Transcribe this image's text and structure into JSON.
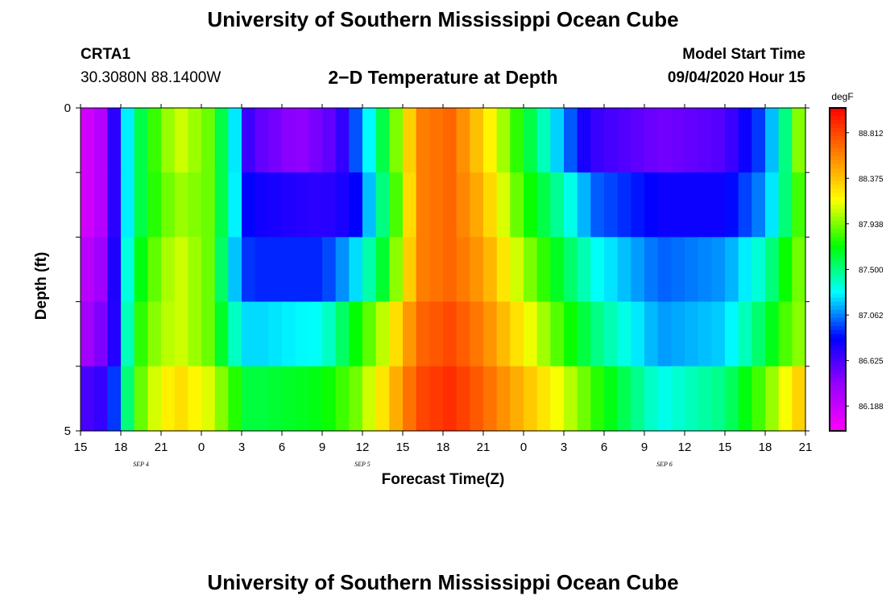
{
  "page": {
    "title": "University of Southern Mississippi Ocean Cube",
    "station_id": "CRTA1",
    "coordinates": "30.3080N 88.1400W",
    "start_label": "Model Start Time",
    "start_value": "09/04/2020 Hour 15"
  },
  "chart_data": {
    "type": "heatmap",
    "title": "2−D Temperature at Depth",
    "xlabel": "Forecast Time(Z)",
    "ylabel": "Depth (ft)",
    "x_tick_labels": [
      "15",
      "18",
      "21",
      "0",
      "3",
      "6",
      "9",
      "12",
      "15",
      "18",
      "21",
      "0",
      "3",
      "6",
      "9",
      "12",
      "15",
      "18",
      "21"
    ],
    "x_day_labels": [
      {
        "label": "SEP 4",
        "tick_index": 1.5
      },
      {
        "label": "SEP 5",
        "tick_index": 7
      },
      {
        "label": "SEP 6",
        "tick_index": 14.5
      }
    ],
    "y_tick_labels": [
      "0",
      "5"
    ],
    "ylim": [
      0,
      5
    ],
    "depth_levels": 5,
    "time_steps": 54,
    "colorbar": {
      "units": "degF",
      "min": 85.95,
      "max": 89.05,
      "ticks": [
        "88.812",
        "88.375",
        "87.938",
        "87.500",
        "87.062",
        "86.625",
        "86.188"
      ],
      "colors": [
        "#ff00ff",
        "#9900ff",
        "#0000ff",
        "#00ffff",
        "#00ff00",
        "#ffff00",
        "#ff8000",
        "#ff0000"
      ]
    },
    "series": [
      {
        "depth": 0.5,
        "keyframes": [
          [
            0,
            86.1
          ],
          [
            3,
            86.3
          ],
          [
            5,
            87.0
          ],
          [
            6,
            87.3
          ],
          [
            8,
            87.7
          ],
          [
            12,
            88.1
          ],
          [
            16,
            87.9
          ],
          [
            19,
            87.3
          ],
          [
            21,
            86.6
          ],
          [
            27,
            86.4
          ],
          [
            32,
            86.6
          ],
          [
            36,
            87.3
          ],
          [
            39,
            87.9
          ],
          [
            42,
            88.6
          ],
          [
            46,
            88.7
          ],
          [
            50,
            88.3
          ],
          [
            55,
            87.7
          ],
          [
            60,
            87.1
          ],
          [
            63,
            86.7
          ],
          [
            72,
            86.5
          ],
          [
            80,
            86.6
          ],
          [
            85,
            87.0
          ],
          [
            88,
            87.6
          ],
          [
            90,
            88.2
          ]
        ]
      },
      {
        "depth": 1.5,
        "keyframes": [
          [
            0,
            86.1
          ],
          [
            3,
            86.3
          ],
          [
            5,
            87.0
          ],
          [
            6,
            87.3
          ],
          [
            8,
            87.7
          ],
          [
            12,
            88.0
          ],
          [
            16,
            87.9
          ],
          [
            19,
            87.3
          ],
          [
            21,
            86.8
          ],
          [
            30,
            86.7
          ],
          [
            34,
            86.8
          ],
          [
            36,
            87.2
          ],
          [
            39,
            87.8
          ],
          [
            42,
            88.6
          ],
          [
            46,
            88.7
          ],
          [
            50,
            88.4
          ],
          [
            55,
            87.8
          ],
          [
            60,
            87.4
          ],
          [
            64,
            87.0
          ],
          [
            72,
            86.8
          ],
          [
            80,
            86.8
          ],
          [
            85,
            87.1
          ],
          [
            88,
            87.6
          ],
          [
            90,
            88.0
          ]
        ]
      },
      {
        "depth": 2.5,
        "keyframes": [
          [
            0,
            86.2
          ],
          [
            3,
            86.4
          ],
          [
            5,
            87.0
          ],
          [
            6,
            87.4
          ],
          [
            8,
            87.8
          ],
          [
            12,
            88.1
          ],
          [
            16,
            87.9
          ],
          [
            19,
            87.2
          ],
          [
            21,
            86.9
          ],
          [
            30,
            86.9
          ],
          [
            34,
            87.2
          ],
          [
            38,
            87.7
          ],
          [
            42,
            88.6
          ],
          [
            46,
            88.7
          ],
          [
            50,
            88.5
          ],
          [
            55,
            88.0
          ],
          [
            60,
            87.6
          ],
          [
            64,
            87.3
          ],
          [
            72,
            87.0
          ],
          [
            80,
            87.1
          ],
          [
            85,
            87.4
          ],
          [
            88,
            87.8
          ],
          [
            90,
            88.0
          ]
        ]
      },
      {
        "depth": 3.5,
        "keyframes": [
          [
            0,
            86.3
          ],
          [
            3,
            86.5
          ],
          [
            5,
            86.9
          ],
          [
            6,
            87.5
          ],
          [
            8,
            87.9
          ],
          [
            12,
            88.1
          ],
          [
            16,
            87.9
          ],
          [
            19,
            87.4
          ],
          [
            21,
            87.2
          ],
          [
            30,
            87.3
          ],
          [
            34,
            87.7
          ],
          [
            38,
            88.1
          ],
          [
            42,
            88.7
          ],
          [
            46,
            88.8
          ],
          [
            50,
            88.6
          ],
          [
            55,
            88.2
          ],
          [
            60,
            87.8
          ],
          [
            64,
            87.5
          ],
          [
            72,
            87.1
          ],
          [
            80,
            87.2
          ],
          [
            85,
            87.6
          ],
          [
            88,
            87.9
          ],
          [
            90,
            88.0
          ]
        ]
      },
      {
        "depth": 4.5,
        "keyframes": [
          [
            0,
            86.6
          ],
          [
            3,
            86.7
          ],
          [
            5,
            87.1
          ],
          [
            6,
            87.6
          ],
          [
            8,
            88.0
          ],
          [
            12,
            88.3
          ],
          [
            16,
            88.1
          ],
          [
            19,
            87.8
          ],
          [
            21,
            87.6
          ],
          [
            30,
            87.7
          ],
          [
            34,
            87.9
          ],
          [
            38,
            88.3
          ],
          [
            42,
            88.8
          ],
          [
            46,
            88.9
          ],
          [
            50,
            88.7
          ],
          [
            55,
            88.4
          ],
          [
            60,
            88.1
          ],
          [
            64,
            87.8
          ],
          [
            72,
            87.3
          ],
          [
            80,
            87.5
          ],
          [
            85,
            87.9
          ],
          [
            88,
            88.2
          ],
          [
            90,
            88.4
          ]
        ]
      }
    ]
  }
}
